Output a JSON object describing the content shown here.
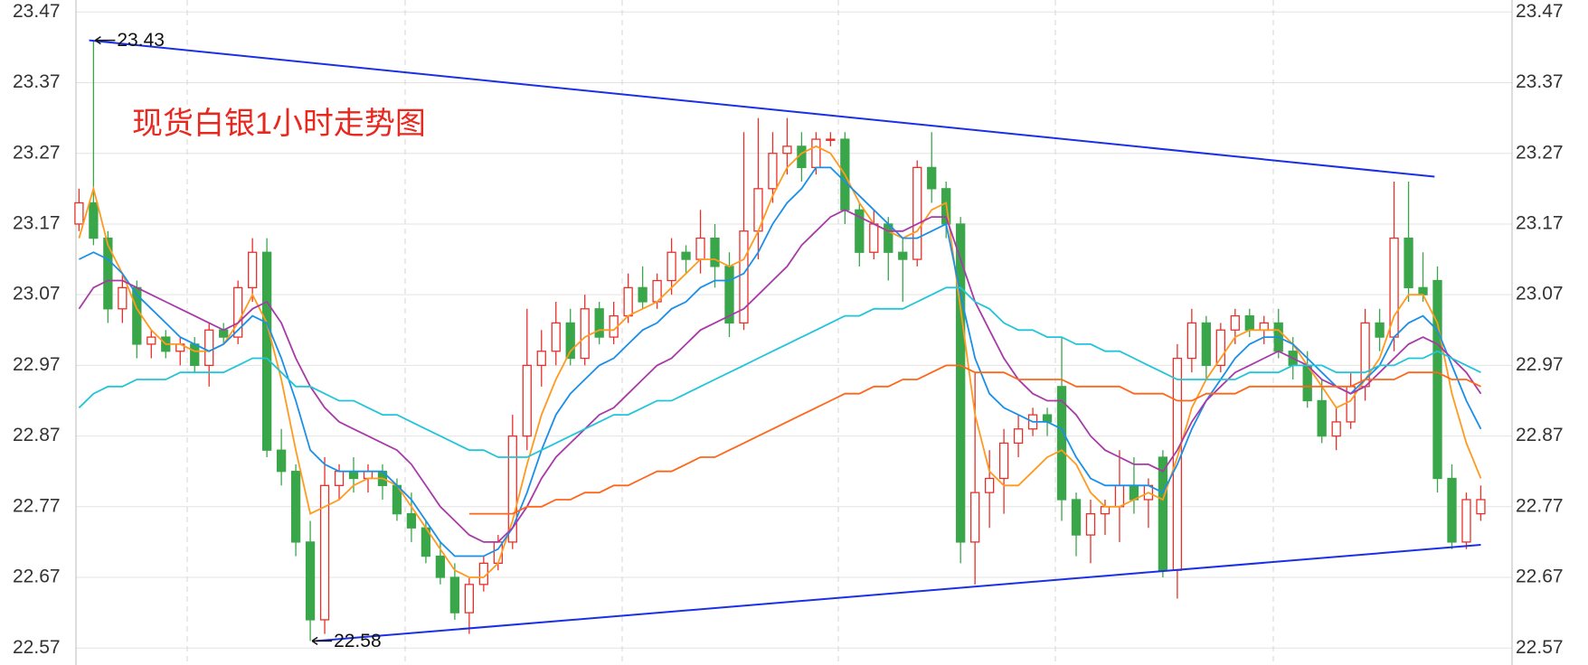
{
  "chart_data": {
    "type": "candlestick",
    "title": "现货白银1小时走势图",
    "ylim": [
      22.546,
      23.487
    ],
    "yticks": [
      22.57,
      22.67,
      22.77,
      22.87,
      22.97,
      23.07,
      23.17,
      23.27,
      23.37,
      23.47
    ],
    "grid": true,
    "up_color": "#e8302a",
    "down_color": "#3aa64a",
    "open": [
      23.17,
      23.2,
      23.15,
      23.05,
      23.08,
      23.0,
      23.01,
      22.99,
      23.0,
      22.97,
      23.02,
      23.01,
      23.08,
      23.13,
      22.85,
      22.82,
      22.72,
      22.61,
      22.8,
      22.82,
      22.81,
      22.82,
      22.8,
      22.76,
      22.74,
      22.7,
      22.67,
      22.62,
      22.66,
      22.69,
      22.72,
      22.87,
      22.97,
      22.99,
      23.03,
      22.98,
      23.05,
      23.01,
      23.04,
      23.08,
      23.06,
      23.09,
      23.13,
      23.12,
      23.15,
      23.11,
      23.03,
      23.16,
      23.22,
      23.27,
      23.28,
      23.25,
      23.29,
      23.29,
      23.19,
      23.13,
      23.17,
      23.13,
      23.12,
      23.25,
      23.22,
      23.17,
      22.72,
      22.79,
      22.81,
      22.86,
      22.88,
      22.9,
      22.94,
      22.78,
      22.73,
      22.76,
      22.77,
      22.8,
      22.78,
      22.84,
      22.68,
      22.98,
      23.03,
      22.97,
      23.02,
      23.04,
      23.02,
      23.03,
      22.99,
      22.97,
      22.92,
      22.87,
      22.89,
      22.94,
      23.03,
      23.01,
      23.15,
      23.08,
      23.09,
      22.81,
      22.72,
      22.76
    ],
    "high": [
      23.22,
      23.43,
      23.16,
      23.1,
      23.09,
      23.02,
      23.02,
      23.01,
      23.01,
      23.03,
      23.03,
      23.09,
      23.15,
      23.15,
      22.88,
      22.83,
      22.75,
      22.84,
      22.83,
      22.84,
      22.83,
      22.83,
      22.81,
      22.79,
      22.75,
      22.72,
      22.69,
      22.67,
      22.7,
      22.73,
      22.9,
      23.05,
      23.02,
      23.06,
      23.05,
      23.07,
      23.06,
      23.06,
      23.1,
      23.11,
      23.1,
      23.15,
      23.14,
      23.19,
      23.17,
      23.13,
      23.3,
      23.32,
      23.3,
      23.32,
      23.3,
      23.3,
      23.3,
      23.3,
      23.2,
      23.19,
      23.18,
      23.15,
      23.26,
      23.3,
      23.23,
      23.18,
      22.96,
      22.85,
      22.88,
      22.9,
      22.91,
      22.91,
      23.01,
      22.79,
      22.78,
      22.78,
      22.85,
      22.84,
      22.81,
      22.85,
      23.0,
      23.05,
      23.04,
      23.03,
      23.05,
      23.05,
      23.04,
      23.05,
      23.01,
      22.99,
      22.95,
      22.91,
      22.96,
      23.05,
      23.05,
      23.23,
      23.23,
      23.13,
      23.11,
      22.83,
      22.79,
      22.8
    ],
    "low": [
      23.16,
      23.14,
      23.03,
      23.03,
      22.98,
      22.98,
      22.98,
      22.97,
      22.96,
      22.94,
      23.0,
      23.0,
      23.06,
      22.84,
      22.8,
      22.7,
      22.58,
      22.59,
      22.78,
      22.79,
      22.79,
      22.78,
      22.75,
      22.72,
      22.69,
      22.66,
      22.61,
      22.59,
      22.65,
      22.68,
      22.71,
      22.85,
      22.94,
      22.97,
      22.97,
      22.97,
      23.0,
      23.0,
      23.03,
      23.05,
      23.05,
      23.07,
      23.1,
      23.1,
      23.08,
      23.01,
      23.02,
      23.12,
      23.2,
      23.24,
      23.23,
      23.24,
      23.28,
      23.17,
      23.11,
      23.12,
      23.09,
      23.06,
      23.11,
      23.2,
      23.15,
      22.69,
      22.66,
      22.74,
      22.76,
      22.84,
      22.87,
      22.87,
      22.75,
      22.7,
      22.69,
      22.73,
      22.72,
      22.76,
      22.74,
      22.67,
      22.64,
      22.96,
      22.95,
      22.96,
      23.0,
      23.01,
      23.0,
      22.98,
      22.95,
      22.91,
      22.86,
      22.85,
      22.88,
      22.92,
      22.99,
      22.99,
      23.06,
      23.06,
      22.79,
      22.71,
      22.71,
      22.75
    ],
    "close": [
      23.2,
      23.15,
      23.05,
      23.08,
      23.0,
      23.01,
      22.99,
      23.0,
      22.97,
      23.02,
      23.01,
      23.08,
      23.13,
      22.85,
      22.82,
      22.72,
      22.61,
      22.8,
      22.82,
      22.81,
      22.82,
      22.8,
      22.76,
      22.74,
      22.7,
      22.67,
      22.62,
      22.66,
      22.69,
      22.72,
      22.87,
      22.97,
      22.99,
      23.03,
      22.98,
      23.05,
      23.01,
      23.04,
      23.08,
      23.06,
      23.09,
      23.13,
      23.12,
      23.15,
      23.11,
      23.03,
      23.16,
      23.22,
      23.27,
      23.28,
      23.25,
      23.29,
      23.29,
      23.19,
      23.13,
      23.17,
      23.13,
      23.12,
      23.25,
      23.22,
      23.17,
      22.72,
      22.79,
      22.81,
      22.86,
      22.88,
      22.9,
      22.89,
      22.78,
      22.73,
      22.76,
      22.77,
      22.8,
      22.78,
      22.8,
      22.68,
      22.98,
      23.03,
      22.97,
      23.02,
      23.04,
      23.02,
      23.03,
      22.99,
      22.97,
      22.92,
      22.87,
      22.89,
      22.94,
      23.03,
      23.01,
      23.15,
      23.08,
      23.07,
      22.81,
      22.72,
      22.78,
      22.78
    ],
    "series": [
      {
        "color": "#ff9a1f",
        "values": [
          23.15,
          23.22,
          23.14,
          23.1,
          23.05,
          23.02,
          23.0,
          23.0,
          22.99,
          22.99,
          23.0,
          23.03,
          23.07,
          23.03,
          22.95,
          22.85,
          22.76,
          22.77,
          22.78,
          22.8,
          22.81,
          22.81,
          22.8,
          22.77,
          22.74,
          22.71,
          22.68,
          22.67,
          22.67,
          22.69,
          22.75,
          22.83,
          22.9,
          22.95,
          22.99,
          23.01,
          23.02,
          23.02,
          23.04,
          23.05,
          23.06,
          23.08,
          23.1,
          23.12,
          23.12,
          23.11,
          23.12,
          23.16,
          23.21,
          23.25,
          23.27,
          23.28,
          23.27,
          23.24,
          23.2,
          23.17,
          23.16,
          23.15,
          23.16,
          23.19,
          23.2,
          23.05,
          22.9,
          22.82,
          22.8,
          22.8,
          22.82,
          22.84,
          22.85,
          22.83,
          22.79,
          22.77,
          22.77,
          22.78,
          22.79,
          22.78,
          22.84,
          22.91,
          22.95,
          22.98,
          23.01,
          23.02,
          23.02,
          23.02,
          23.0,
          22.97,
          22.94,
          22.91,
          22.92,
          22.95,
          22.98,
          23.04,
          23.07,
          23.07,
          23.03,
          22.93,
          22.86,
          22.81
        ]
      },
      {
        "color": "#1b8fe8",
        "values": [
          23.12,
          23.13,
          23.12,
          23.1,
          23.07,
          23.05,
          23.03,
          23.01,
          23.0,
          22.99,
          23.0,
          23.02,
          23.04,
          23.03,
          22.98,
          22.92,
          22.85,
          22.83,
          22.82,
          22.82,
          22.82,
          22.82,
          22.8,
          22.78,
          22.75,
          22.72,
          22.7,
          22.7,
          22.7,
          22.71,
          22.74,
          22.79,
          22.85,
          22.9,
          22.93,
          22.95,
          22.97,
          22.98,
          23.0,
          23.02,
          23.03,
          23.05,
          23.06,
          23.08,
          23.09,
          23.09,
          23.1,
          23.13,
          23.17,
          23.2,
          23.22,
          23.25,
          23.25,
          23.23,
          23.21,
          23.19,
          23.17,
          23.15,
          23.15,
          23.16,
          23.17,
          23.07,
          22.98,
          22.93,
          22.91,
          22.9,
          22.89,
          22.89,
          22.88,
          22.84,
          22.81,
          22.8,
          22.8,
          22.8,
          22.8,
          22.79,
          22.83,
          22.88,
          22.92,
          22.95,
          22.98,
          23.0,
          23.01,
          23.01,
          23.0,
          22.98,
          22.96,
          22.94,
          22.93,
          22.95,
          22.97,
          23.01,
          23.03,
          23.04,
          23.02,
          22.97,
          22.92,
          22.88
        ]
      },
      {
        "color": "#a83aa8",
        "values": [
          23.05,
          23.08,
          23.09,
          23.09,
          23.08,
          23.07,
          23.06,
          23.05,
          23.04,
          23.03,
          23.02,
          23.03,
          23.05,
          23.06,
          23.03,
          22.98,
          22.94,
          22.91,
          22.89,
          22.88,
          22.87,
          22.86,
          22.85,
          22.83,
          22.8,
          22.77,
          22.75,
          22.73,
          22.72,
          22.72,
          22.74,
          22.77,
          22.81,
          22.84,
          22.86,
          22.88,
          22.9,
          22.91,
          22.93,
          22.95,
          22.97,
          22.98,
          23.0,
          23.02,
          23.03,
          23.04,
          23.05,
          23.07,
          23.09,
          23.11,
          23.14,
          23.16,
          23.18,
          23.19,
          23.18,
          23.17,
          23.16,
          23.16,
          23.17,
          23.18,
          23.18,
          23.12,
          23.06,
          23.02,
          22.98,
          22.95,
          22.93,
          22.92,
          22.92,
          22.9,
          22.87,
          22.85,
          22.84,
          22.83,
          22.83,
          22.82,
          22.85,
          22.89,
          22.92,
          22.94,
          22.96,
          22.97,
          22.98,
          22.99,
          22.98,
          22.97,
          22.95,
          22.94,
          22.93,
          22.94,
          22.96,
          22.98,
          23.0,
          23.01,
          23.0,
          22.98,
          22.96,
          22.93
        ]
      },
      {
        "color": "#21c5d9",
        "values": [
          22.91,
          22.93,
          22.94,
          22.94,
          22.95,
          22.95,
          22.95,
          22.96,
          22.96,
          22.96,
          22.96,
          22.97,
          22.98,
          22.98,
          22.96,
          22.94,
          22.94,
          22.93,
          22.92,
          22.92,
          22.91,
          22.9,
          22.9,
          22.89,
          22.88,
          22.87,
          22.86,
          22.85,
          22.85,
          22.84,
          22.84,
          22.84,
          22.85,
          22.86,
          22.87,
          22.88,
          22.89,
          22.9,
          22.9,
          22.91,
          22.92,
          22.92,
          22.93,
          22.94,
          22.95,
          22.96,
          22.97,
          22.98,
          22.99,
          23.0,
          23.01,
          23.02,
          23.03,
          23.04,
          23.04,
          23.05,
          23.05,
          23.05,
          23.06,
          23.07,
          23.08,
          23.08,
          23.06,
          23.05,
          23.03,
          23.02,
          23.02,
          23.01,
          23.01,
          23.0,
          23.0,
          22.99,
          22.99,
          22.98,
          22.97,
          22.96,
          22.95,
          22.95,
          22.95,
          22.95,
          22.95,
          22.96,
          22.96,
          22.96,
          22.97,
          22.97,
          22.97,
          22.96,
          22.96,
          22.96,
          22.97,
          22.97,
          22.98,
          22.98,
          22.99,
          22.98,
          22.97,
          22.96
        ]
      },
      {
        "color": "#ff6619",
        "values": [
          null,
          null,
          null,
          null,
          null,
          null,
          null,
          null,
          null,
          null,
          null,
          null,
          null,
          null,
          null,
          null,
          null,
          null,
          null,
          null,
          null,
          null,
          null,
          null,
          null,
          null,
          null,
          22.76,
          22.76,
          22.76,
          22.76,
          22.77,
          22.77,
          22.78,
          22.78,
          22.79,
          22.79,
          22.8,
          22.8,
          22.81,
          22.82,
          22.82,
          22.83,
          22.84,
          22.84,
          22.85,
          22.86,
          22.87,
          22.88,
          22.89,
          22.9,
          22.91,
          22.92,
          22.93,
          22.93,
          22.94,
          22.94,
          22.95,
          22.95,
          22.96,
          22.97,
          22.97,
          22.96,
          22.96,
          22.96,
          22.95,
          22.95,
          22.95,
          22.95,
          22.94,
          22.94,
          22.94,
          22.94,
          22.93,
          22.93,
          22.93,
          22.92,
          22.92,
          22.93,
          22.93,
          22.93,
          22.94,
          22.94,
          22.94,
          22.94,
          22.94,
          22.94,
          22.94,
          22.94,
          22.95,
          22.95,
          22.95,
          22.96,
          22.96,
          22.96,
          22.95,
          22.95,
          22.94
        ]
      }
    ],
    "trendlines": [
      {
        "color": "#1a2fe6",
        "from": [
          0.7,
          23.43
        ],
        "to": [
          93.8,
          23.237
        ]
      },
      {
        "color": "#1a2fe6",
        "from": [
          16.4,
          22.58
        ],
        "to": [
          97,
          22.716
        ]
      }
    ],
    "annotations": [
      {
        "index": 1,
        "value": 23.43
      },
      {
        "index": 16,
        "value": 22.58
      }
    ]
  }
}
